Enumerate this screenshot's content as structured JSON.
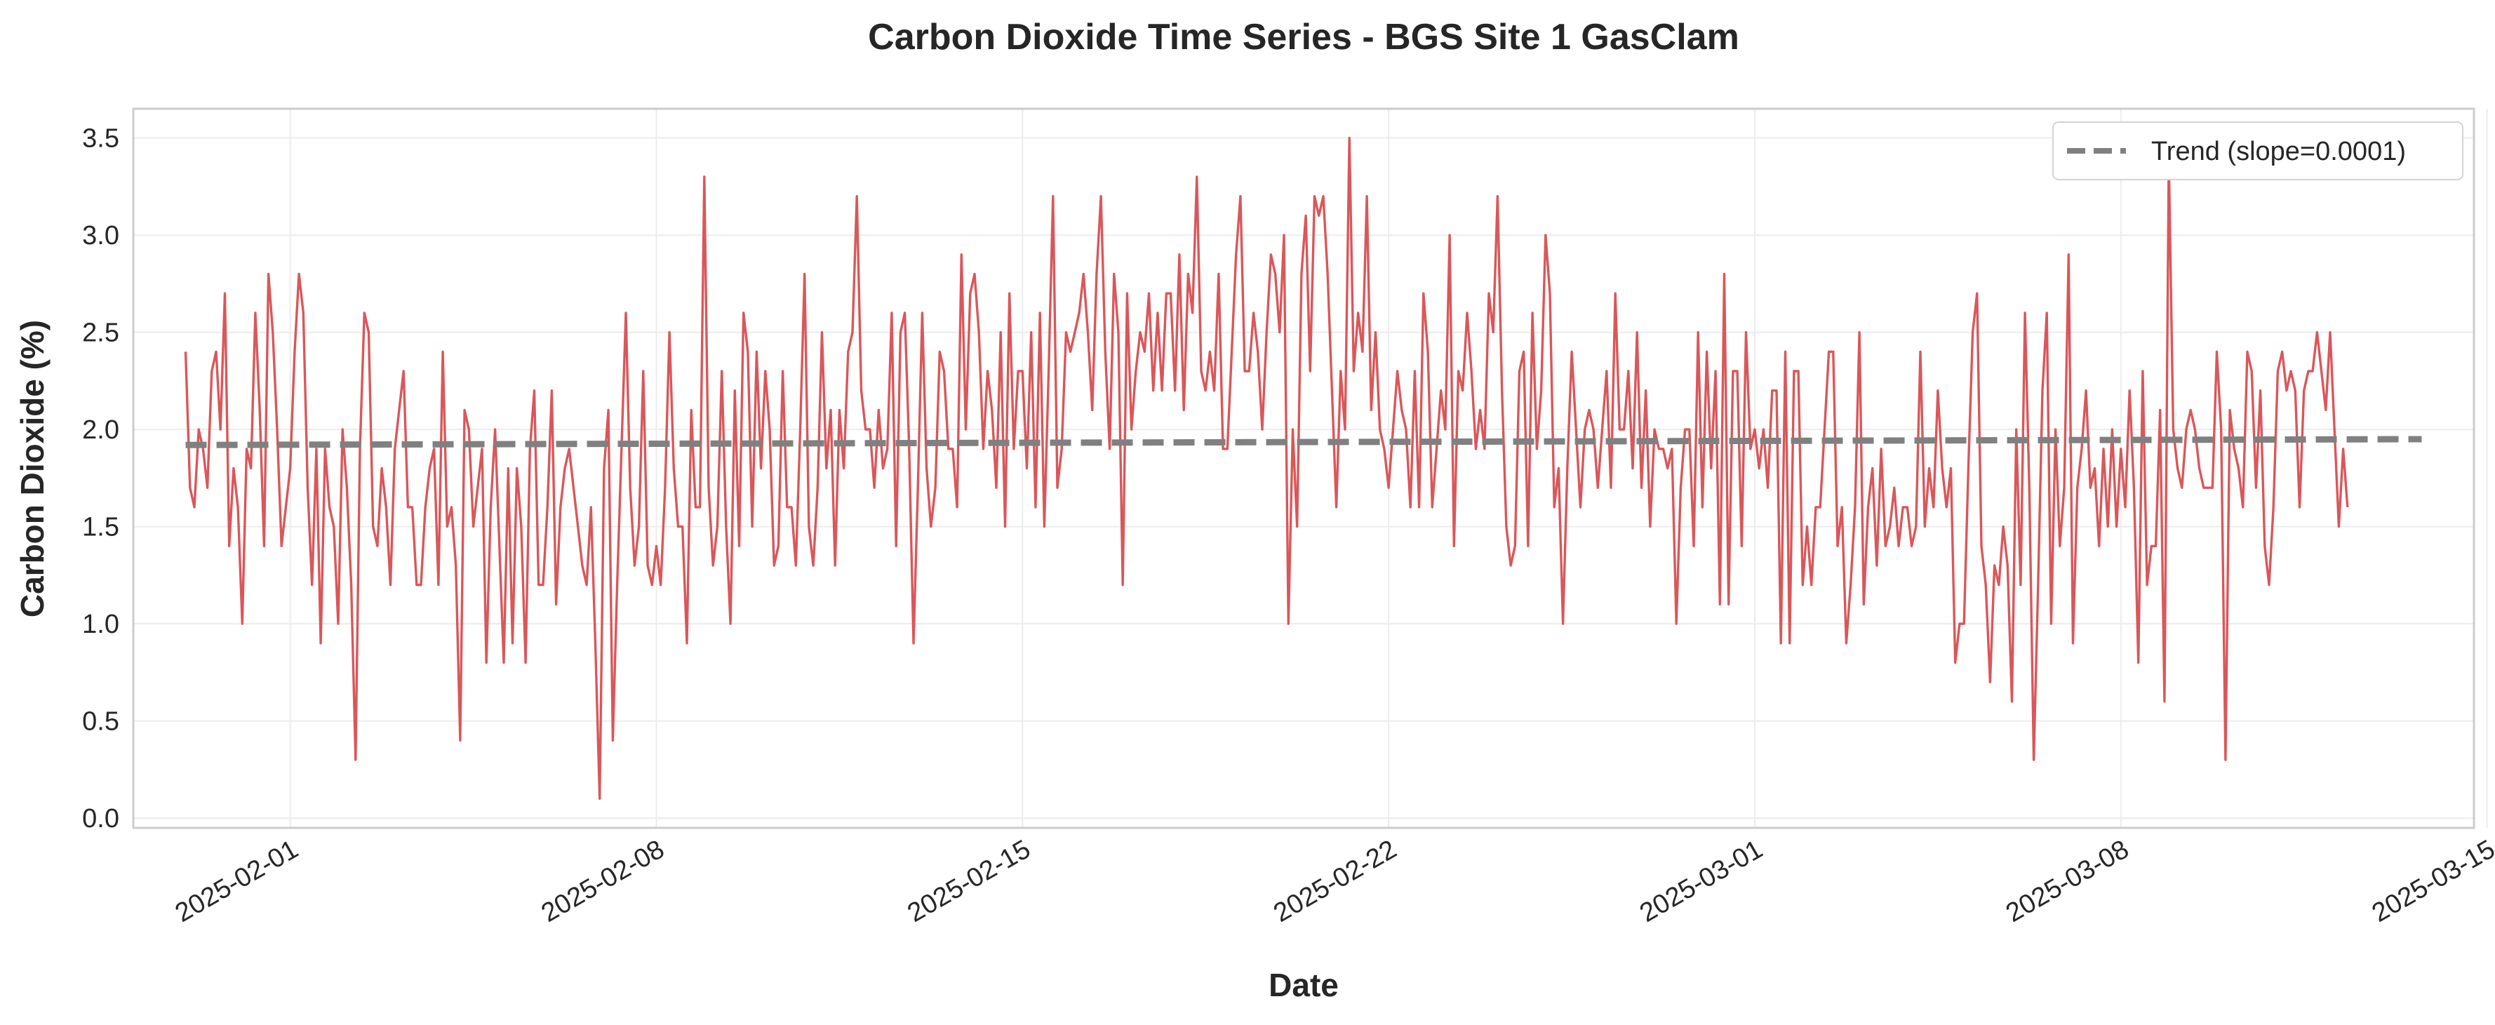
{
  "chart_data": {
    "type": "line",
    "title": "Carbon Dioxide Time Series - BGS Site 1 GasClam",
    "xlabel": "Date",
    "ylabel": "Carbon Dioxide (%)",
    "x_start": "2025-01-30T00:00",
    "x_end": "2025-03-13T18:00",
    "sample_hours": 2,
    "xlim": [
      "2025-01-29T00:00",
      "2025-03-14T18:00"
    ],
    "ylim": [
      -0.05,
      3.65
    ],
    "x_ticks": [
      "2025-02-01",
      "2025-02-08",
      "2025-02-15",
      "2025-02-22",
      "2025-03-01",
      "2025-03-08",
      "2025-03-15"
    ],
    "y_ticks": [
      "0.0",
      "0.5",
      "1.0",
      "1.5",
      "2.0",
      "2.5",
      "3.0",
      "3.5"
    ],
    "grid": true,
    "legend_position": "top-right",
    "colors": {
      "series": "#d9575a",
      "trend": "#808080",
      "axis": "#cccccc",
      "grid": "#ececec"
    },
    "series": [
      {
        "values": [
          2.4,
          1.7,
          1.6,
          2.0,
          1.9,
          1.7,
          2.3,
          2.4,
          2.0,
          2.7,
          1.4,
          1.8,
          1.6,
          1.0,
          1.9,
          1.8,
          2.6,
          2.1,
          1.4,
          2.8,
          2.5,
          2.0,
          1.4,
          1.6,
          1.8,
          2.4,
          2.8,
          2.6,
          1.7,
          1.2,
          1.9,
          0.9,
          1.9,
          1.6,
          1.5,
          1.0,
          2.0,
          1.7,
          1.2,
          0.3,
          1.9,
          2.6,
          2.5,
          1.5,
          1.4,
          1.8,
          1.6,
          1.2,
          1.9,
          2.1,
          2.3,
          1.6,
          1.6,
          1.2,
          1.2,
          1.6,
          1.8,
          1.9,
          1.2,
          2.4,
          1.5,
          1.6,
          1.3,
          0.4,
          2.1,
          2.0,
          1.5,
          1.7,
          1.9,
          0.8,
          1.6,
          2.0,
          1.4,
          0.8,
          1.8,
          0.9,
          1.8,
          1.5,
          0.8,
          1.9,
          2.2,
          1.2,
          1.2,
          1.6,
          2.2,
          1.1,
          1.6,
          1.8,
          1.9,
          1.7,
          1.5,
          1.3,
          1.2,
          1.6,
          0.9,
          0.1,
          1.8,
          2.1,
          0.4,
          1.2,
          1.9,
          2.6,
          1.7,
          1.3,
          1.5,
          2.3,
          1.3,
          1.2,
          1.4,
          1.2,
          1.7,
          2.5,
          1.8,
          1.5,
          1.5,
          0.9,
          2.1,
          1.6,
          1.6,
          3.3,
          1.7,
          1.3,
          1.5,
          2.3,
          1.5,
          1.0,
          2.2,
          1.4,
          2.6,
          2.4,
          1.5,
          2.4,
          1.8,
          2.3,
          2.0,
          1.3,
          1.4,
          2.3,
          1.6,
          1.6,
          1.3,
          2.0,
          2.8,
          1.5,
          1.3,
          1.7,
          2.5,
          1.8,
          2.1,
          1.3,
          2.1,
          1.8,
          2.4,
          2.5,
          3.2,
          2.2,
          2.0,
          2.0,
          1.7,
          2.1,
          1.8,
          1.9,
          2.6,
          1.4,
          2.5,
          2.6,
          1.9,
          0.9,
          1.7,
          2.6,
          1.8,
          1.5,
          1.7,
          2.4,
          2.3,
          1.9,
          1.9,
          1.6,
          2.9,
          2.0,
          2.7,
          2.8,
          2.5,
          1.9,
          2.3,
          2.1,
          1.7,
          2.5,
          1.5,
          2.7,
          1.9,
          2.3,
          2.3,
          1.8,
          2.5,
          1.6,
          2.6,
          1.5,
          2.3,
          3.2,
          1.7,
          1.9,
          2.5,
          2.4,
          2.5,
          2.6,
          2.8,
          2.5,
          2.1,
          2.8,
          3.2,
          2.4,
          1.9,
          2.8,
          2.5,
          1.2,
          2.7,
          2.0,
          2.3,
          2.5,
          2.4,
          2.7,
          2.2,
          2.6,
          2.2,
          2.7,
          2.7,
          2.2,
          2.9,
          2.1,
          2.8,
          2.6,
          3.3,
          2.3,
          2.2,
          2.4,
          2.2,
          2.8,
          1.9,
          1.9,
          2.4,
          2.9,
          3.2,
          2.3,
          2.3,
          2.6,
          2.4,
          2.0,
          2.5,
          2.9,
          2.8,
          2.5,
          3.0,
          1.0,
          2.0,
          1.5,
          2.8,
          3.1,
          2.3,
          3.2,
          3.1,
          3.2,
          2.8,
          2.2,
          1.6,
          2.3,
          2.0,
          3.5,
          2.3,
          2.6,
          2.4,
          3.2,
          2.1,
          2.5,
          2.0,
          1.9,
          1.7,
          2.0,
          2.3,
          2.1,
          2.0,
          1.6,
          2.3,
          1.6,
          2.7,
          2.4,
          1.6,
          1.9,
          2.2,
          2.0,
          3.0,
          1.4,
          2.3,
          2.2,
          2.6,
          2.3,
          1.9,
          2.1,
          1.9,
          2.7,
          2.5,
          3.2,
          2.2,
          1.5,
          1.3,
          1.4,
          2.3,
          2.4,
          1.4,
          2.6,
          1.9,
          2.2,
          3.0,
          2.7,
          1.6,
          1.8,
          1.0,
          1.8,
          2.4,
          2.0,
          1.6,
          2.0,
          2.1,
          2.0,
          1.7,
          2.0,
          2.3,
          1.7,
          2.7,
          2.0,
          2.0,
          2.3,
          1.8,
          2.5,
          1.7,
          2.2,
          1.5,
          2.0,
          1.9,
          1.9,
          1.8,
          1.9,
          1.0,
          1.7,
          2.0,
          2.0,
          1.4,
          2.5,
          1.6,
          2.4,
          1.8,
          2.3,
          1.1,
          2.8,
          1.1,
          2.3,
          2.3,
          1.4,
          2.5,
          1.9,
          2.0,
          1.8,
          2.0,
          1.7,
          2.2,
          2.2,
          0.9,
          2.4,
          0.9,
          2.3,
          2.3,
          1.2,
          1.5,
          1.2,
          1.6,
          1.6,
          2.0,
          2.4,
          2.4,
          1.4,
          1.6,
          0.9,
          1.2,
          1.6,
          2.5,
          1.1,
          1.6,
          1.8,
          1.3,
          1.9,
          1.4,
          1.5,
          1.7,
          1.4,
          1.6,
          1.6,
          1.4,
          1.5,
          2.4,
          1.5,
          1.8,
          1.6,
          2.2,
          1.8,
          1.6,
          1.8,
          0.8,
          1.0,
          1.0,
          1.8,
          2.5,
          2.7,
          1.4,
          1.2,
          0.7,
          1.3,
          1.2,
          1.5,
          1.3,
          0.6,
          2.0,
          1.2,
          2.6,
          1.7,
          0.3,
          1.2,
          2.2,
          2.6,
          1.0,
          2.0,
          1.4,
          1.7,
          2.9,
          0.9,
          1.7,
          1.9,
          2.2,
          1.7,
          1.8,
          1.4,
          1.9,
          1.5,
          2.0,
          1.5,
          1.9,
          1.6,
          2.2,
          1.7,
          0.8,
          2.3,
          1.2,
          1.4,
          1.4,
          2.1,
          0.6,
          3.4,
          2.0,
          1.8,
          1.7,
          2.0,
          2.1,
          2.0,
          1.8,
          1.7,
          1.7,
          1.7,
          2.4,
          2.0,
          0.3,
          2.1,
          1.9,
          1.8,
          1.6,
          2.4,
          2.3,
          1.7,
          2.2,
          1.4,
          1.2,
          1.6,
          2.3,
          2.4,
          2.2,
          2.3,
          2.2,
          1.6,
          2.2,
          2.3,
          2.3,
          2.5,
          2.3,
          2.1,
          2.5,
          2.0,
          1.5,
          1.9,
          1.6
        ]
      }
    ],
    "trend": {
      "label": "Trend (slope=0.0001)",
      "start_value": 1.92,
      "end_value": 1.95
    }
  }
}
